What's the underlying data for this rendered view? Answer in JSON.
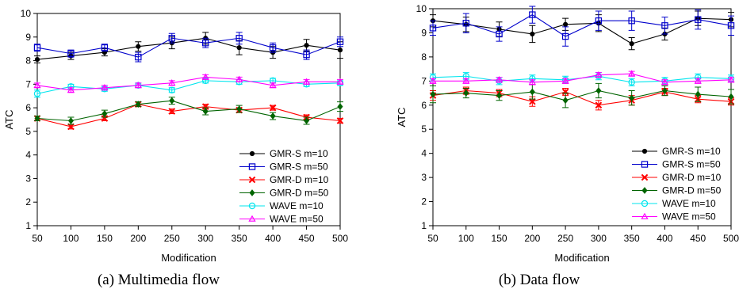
{
  "chart_data": [
    {
      "type": "line",
      "caption": "(a) Multimedia flow",
      "xlabel": "Modification",
      "ylabel": "ATC",
      "x": [
        50,
        100,
        150,
        200,
        250,
        300,
        350,
        400,
        450,
        500
      ],
      "xlim": [
        50,
        500
      ],
      "ylim": [
        1,
        10
      ],
      "yticks": [
        1,
        2,
        3,
        4,
        5,
        6,
        7,
        8,
        9,
        10
      ],
      "grid": false,
      "legend_position": "bottom-right",
      "series": [
        {
          "name": "GMR-S m=10",
          "color": "#000000",
          "marker": "dot",
          "values": [
            8.05,
            8.2,
            8.35,
            8.6,
            8.75,
            8.95,
            8.55,
            8.35,
            8.65,
            8.45
          ],
          "errors": [
            0.15,
            0.15,
            0.15,
            0.2,
            0.25,
            0.25,
            0.3,
            0.25,
            0.25,
            0.35
          ]
        },
        {
          "name": "GMR-S m=50",
          "color": "#0000cc",
          "marker": "square",
          "values": [
            8.55,
            8.3,
            8.55,
            8.15,
            8.95,
            8.75,
            8.95,
            8.55,
            8.25,
            8.8
          ],
          "errors": [
            0.15,
            0.15,
            0.15,
            0.2,
            0.2,
            0.2,
            0.25,
            0.2,
            0.2,
            0.2
          ]
        },
        {
          "name": "GMR-D m=10",
          "color": "#ff0000",
          "marker": "x",
          "values": [
            5.55,
            5.2,
            5.55,
            6.15,
            5.85,
            6.05,
            5.9,
            6.0,
            5.6,
            5.45
          ],
          "errors": [
            0.1,
            0.1,
            0.1,
            0.1,
            0.1,
            0.1,
            0.1,
            0.1,
            0.1,
            0.1
          ]
        },
        {
          "name": "GMR-D m=50",
          "color": "#006400",
          "marker": "diamond",
          "values": [
            5.55,
            5.45,
            5.75,
            6.15,
            6.3,
            5.85,
            5.95,
            5.65,
            5.45,
            6.05
          ],
          "errors": [
            0.1,
            0.15,
            0.15,
            0.1,
            0.15,
            0.15,
            0.15,
            0.15,
            0.15,
            0.2
          ]
        },
        {
          "name": "WAVE m=10",
          "color": "#00e5ee",
          "marker": "circle",
          "values": [
            6.6,
            6.9,
            6.8,
            6.95,
            6.75,
            7.15,
            7.1,
            7.15,
            7.0,
            7.05
          ],
          "errors": [
            0.15,
            0.1,
            0.1,
            0.1,
            0.1,
            0.1,
            0.1,
            0.1,
            0.1,
            0.1
          ]
        },
        {
          "name": "WAVE m=50",
          "color": "#ff00ff",
          "marker": "triangle",
          "values": [
            6.95,
            6.75,
            6.85,
            6.95,
            7.05,
            7.3,
            7.2,
            6.95,
            7.1,
            7.1
          ],
          "errors": [
            0.1,
            0.1,
            0.1,
            0.1,
            0.1,
            0.1,
            0.1,
            0.1,
            0.1,
            0.1
          ]
        }
      ]
    },
    {
      "type": "line",
      "caption": "(b) Data flow",
      "xlabel": "Modification",
      "ylabel": "ATC",
      "x": [
        50,
        100,
        150,
        200,
        250,
        300,
        350,
        400,
        450,
        500
      ],
      "xlim": [
        50,
        500
      ],
      "ylim": [
        1,
        10
      ],
      "yticks": [
        1,
        2,
        3,
        4,
        5,
        6,
        7,
        8,
        9,
        10
      ],
      "grid": false,
      "legend_position": "bottom-right",
      "series": [
        {
          "name": "GMR-S m=10",
          "color": "#000000",
          "marker": "dot",
          "values": [
            9.5,
            9.35,
            9.15,
            8.95,
            9.35,
            9.4,
            8.55,
            8.95,
            9.6,
            9.55
          ],
          "errors": [
            0.25,
            0.3,
            0.3,
            0.35,
            0.25,
            0.35,
            0.25,
            0.25,
            0.3,
            0.3
          ]
        },
        {
          "name": "GMR-S m=50",
          "color": "#0000cc",
          "marker": "square",
          "values": [
            9.2,
            9.4,
            8.95,
            9.75,
            8.85,
            9.5,
            9.5,
            9.3,
            9.55,
            9.3
          ],
          "errors": [
            0.3,
            0.4,
            0.3,
            0.35,
            0.4,
            0.4,
            0.4,
            0.35,
            0.4,
            0.4
          ]
        },
        {
          "name": "GMR-D m=10",
          "color": "#ff0000",
          "marker": "x",
          "values": [
            6.4,
            6.6,
            6.5,
            6.15,
            6.55,
            6.0,
            6.2,
            6.55,
            6.25,
            6.15
          ],
          "errors": [
            0.2,
            0.15,
            0.15,
            0.2,
            0.15,
            0.2,
            0.2,
            0.15,
            0.15,
            0.15
          ]
        },
        {
          "name": "GMR-D m=50",
          "color": "#006400",
          "marker": "diamond",
          "values": [
            6.45,
            6.5,
            6.4,
            6.55,
            6.2,
            6.6,
            6.3,
            6.6,
            6.45,
            6.35
          ],
          "errors": [
            0.35,
            0.2,
            0.2,
            0.3,
            0.3,
            0.3,
            0.3,
            0.2,
            0.3,
            0.3
          ]
        },
        {
          "name": "WAVE m=10",
          "color": "#00e5ee",
          "marker": "circle",
          "values": [
            7.15,
            7.2,
            7.0,
            7.1,
            7.05,
            7.2,
            6.95,
            7.0,
            7.15,
            7.1
          ],
          "errors": [
            0.15,
            0.15,
            0.15,
            0.15,
            0.15,
            0.15,
            0.15,
            0.15,
            0.15,
            0.15
          ]
        },
        {
          "name": "WAVE m=50",
          "color": "#ff00ff",
          "marker": "triangle",
          "values": [
            7.0,
            7.0,
            7.05,
            6.95,
            7.0,
            7.25,
            7.3,
            6.95,
            7.0,
            7.05
          ],
          "errors": [
            0.1,
            0.1,
            0.1,
            0.1,
            0.1,
            0.1,
            0.1,
            0.1,
            0.1,
            0.1
          ]
        }
      ]
    }
  ]
}
